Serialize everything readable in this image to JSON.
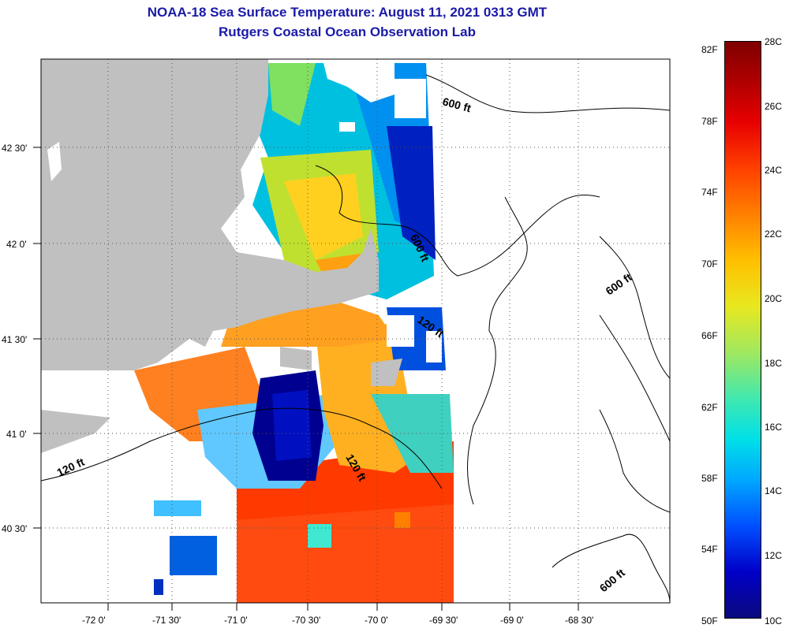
{
  "title_line1": "NOAA-18 Sea Surface Temperature:  August 11, 2021 0313 GMT",
  "title_line2": "Rutgers Coastal Ocean Observation Lab",
  "lat_labels": [
    "42 30'",
    "42 0'",
    "41 30'",
    "41 0'",
    "40 30'"
  ],
  "lon_labels": [
    "-72 0'",
    "-71 30'",
    "-71 0'",
    "-70 30'",
    "-70 0'",
    "-69 30'",
    "-69 0'",
    "-68 30'"
  ],
  "depth_labels": [
    "600 ft",
    "600 ft",
    "120 ft",
    "600 ft",
    "120 ft",
    "120 ft",
    "600 ft"
  ],
  "colorbar": {
    "fahrenheit": [
      "82F",
      "78F",
      "74F",
      "70F",
      "66F",
      "62F",
      "58F",
      "54F",
      "50F"
    ],
    "celsius": [
      "28C",
      "26C",
      "24C",
      "22C",
      "20C",
      "18C",
      "16C",
      "14C",
      "12C",
      "10C"
    ]
  },
  "colors": {
    "title": "#1a1aa8",
    "land": "#c0c0c0",
    "cold": "#0000a0",
    "warm": "#ff3000"
  }
}
